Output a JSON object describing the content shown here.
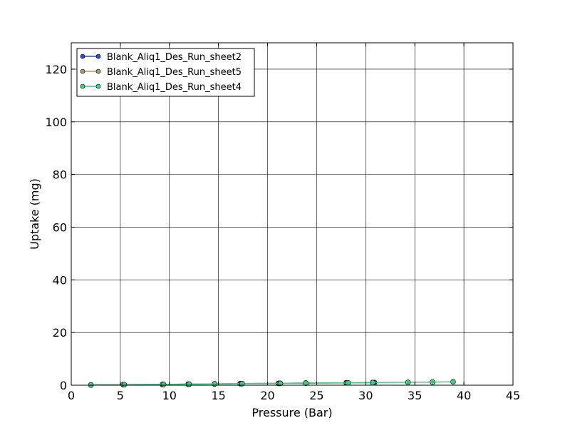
{
  "chart_data": {
    "type": "line",
    "title": "",
    "xlabel": "Pressure (Bar)",
    "ylabel": "Uptake (mg)",
    "xlim": [
      0,
      45
    ],
    "ylim": [
      0,
      130
    ],
    "xticks": [
      0,
      5,
      10,
      15,
      20,
      25,
      30,
      35,
      40,
      45
    ],
    "yticks": [
      0,
      20,
      40,
      60,
      80,
      100,
      120
    ],
    "grid": true,
    "legend_position": "top-left",
    "series": [
      {
        "name": "Blank_Aliq1_Des_Run_sheet2",
        "color": "#2a4bd7",
        "x": [
          2.0,
          5.3,
          9.3,
          11.9,
          14.6,
          17.2,
          21.1,
          23.9,
          28.0,
          30.9
        ],
        "y": [
          0.1,
          0.2,
          0.3,
          0.4,
          0.5,
          0.6,
          0.7,
          0.8,
          0.9,
          1.0
        ]
      },
      {
        "name": "Blank_Aliq1_Des_Run_sheet5",
        "color": "#a89a6e",
        "x": [
          2.0,
          5.3,
          9.3,
          12.0,
          14.6,
          17.3,
          21.2,
          23.9,
          28.1,
          30.7
        ],
        "y": [
          0.1,
          0.2,
          0.3,
          0.4,
          0.5,
          0.6,
          0.7,
          0.8,
          0.9,
          1.0
        ]
      },
      {
        "name": "Blank_Aliq1_Des_Run_sheet4",
        "color": "#3ecf7e",
        "x": [
          2.0,
          5.4,
          9.4,
          12.0,
          14.6,
          17.4,
          21.3,
          23.9,
          28.2,
          30.7,
          34.3,
          36.8,
          38.9
        ],
        "y": [
          0.1,
          0.2,
          0.3,
          0.4,
          0.5,
          0.6,
          0.7,
          0.8,
          0.9,
          1.0,
          1.1,
          1.2,
          1.3
        ]
      }
    ]
  }
}
